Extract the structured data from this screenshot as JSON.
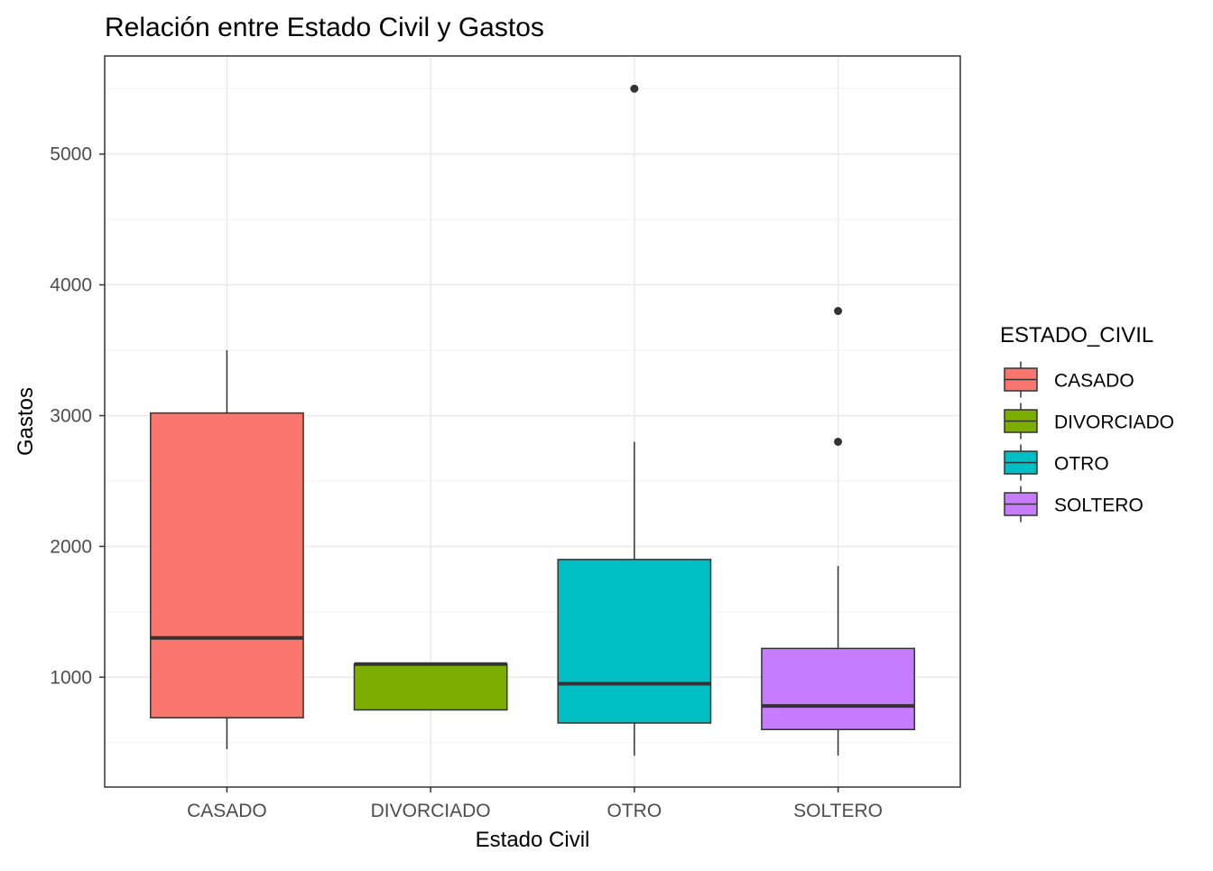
{
  "chart_data": {
    "type": "boxplot",
    "title": "Relación entre Estado Civil y Gastos",
    "xlabel": "Estado Civil",
    "ylabel": "Gastos",
    "ylim": [
      160,
      5750
    ],
    "y_ticks": [
      1000,
      2000,
      3000,
      4000,
      5000
    ],
    "y_tick_labels": [
      "1000",
      "2000",
      "3000",
      "4000",
      "5000"
    ],
    "grid": true,
    "legend": {
      "title": "ESTADO_CIVIL",
      "position": "right"
    },
    "categories": [
      "CASADO",
      "DIVORCIADO",
      "OTRO",
      "SOLTERO"
    ],
    "boxes": [
      {
        "name": "CASADO",
        "color": "#F8766D",
        "whisker_low": 450,
        "q1": 690,
        "median": 1300,
        "q3": 3020,
        "whisker_high": 3500,
        "outliers": []
      },
      {
        "name": "DIVORCIADO",
        "color": "#7CAE00",
        "whisker_low": 750,
        "q1": 750,
        "median": 1100,
        "q3": 1100,
        "whisker_high": 1100,
        "outliers": []
      },
      {
        "name": "OTRO",
        "color": "#00BFC4",
        "whisker_low": 400,
        "q1": 650,
        "median": 950,
        "q3": 1900,
        "whisker_high": 2800,
        "outliers": [
          5500
        ]
      },
      {
        "name": "SOLTERO",
        "color": "#C77CFF",
        "whisker_low": 400,
        "q1": 600,
        "median": 780,
        "q3": 1220,
        "whisker_high": 1850,
        "outliers": [
          2800,
          3800
        ]
      }
    ]
  }
}
